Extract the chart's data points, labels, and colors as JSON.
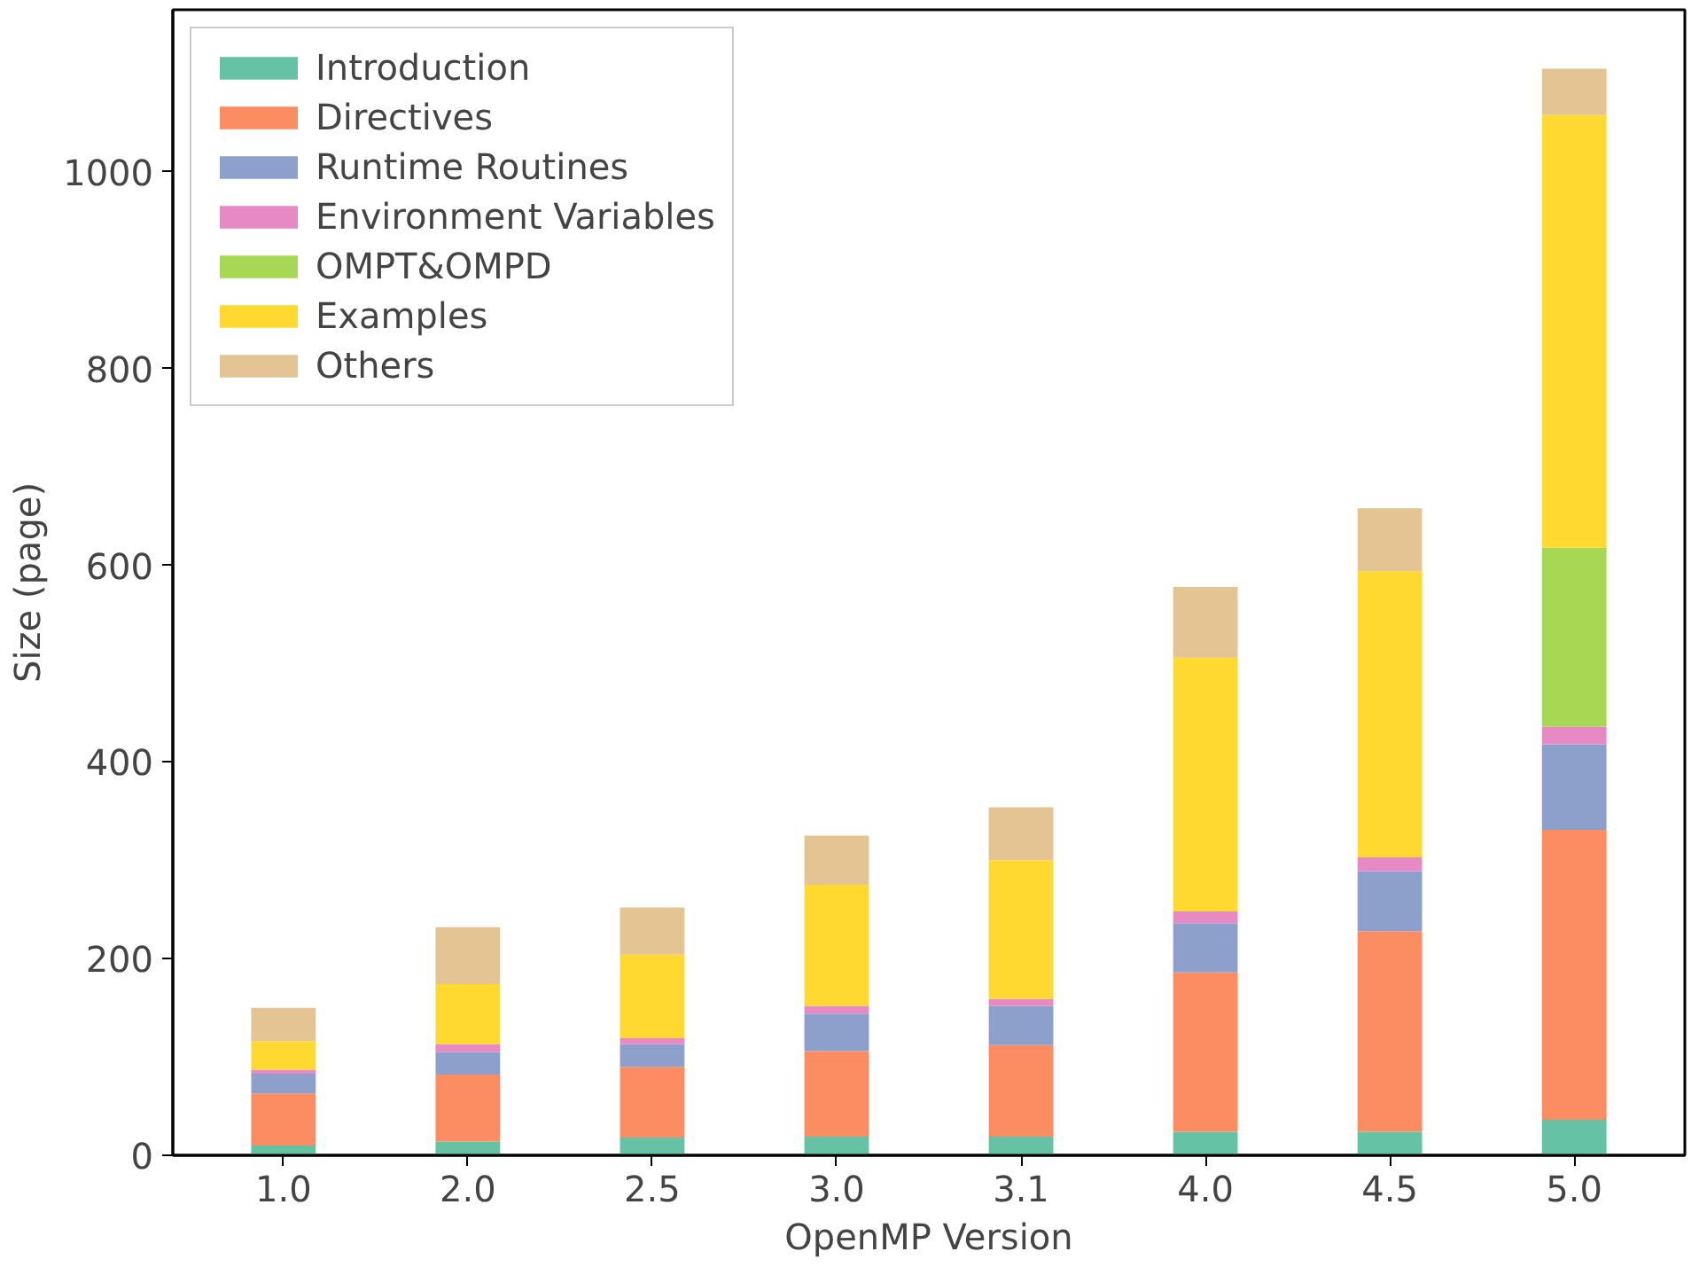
{
  "chart_data": {
    "type": "bar",
    "stacked": true,
    "xlabel": "OpenMP Version",
    "ylabel": "Size (page)",
    "categories": [
      "1.0",
      "2.0",
      "2.5",
      "3.0",
      "3.1",
      "4.0",
      "4.5",
      "5.0"
    ],
    "series": [
      {
        "name": "Introduction",
        "color": "#66c2a5",
        "values": [
          10,
          14,
          18,
          19,
          19,
          24,
          24,
          36
        ]
      },
      {
        "name": "Directives",
        "color": "#fc8d62",
        "values": [
          53,
          68,
          72,
          87,
          93,
          162,
          204,
          295
        ]
      },
      {
        "name": "Runtime Routines",
        "color": "#8da0cb",
        "values": [
          20,
          23,
          23,
          38,
          40,
          50,
          61,
          87
        ]
      },
      {
        "name": "Environment Variables",
        "color": "#e78ac3",
        "values": [
          4,
          8,
          6,
          8,
          7,
          12,
          14,
          18
        ]
      },
      {
        "name": "OMPT&OMPD",
        "color": "#a6d854",
        "values": [
          0,
          0,
          0,
          0,
          0,
          0,
          0,
          182
        ]
      },
      {
        "name": "Examples",
        "color": "#ffd92f",
        "values": [
          29,
          61,
          85,
          123,
          141,
          258,
          291,
          440
        ]
      },
      {
        "name": "Others",
        "color": "#e5c494",
        "values": [
          34,
          58,
          48,
          50,
          54,
          72,
          64,
          47
        ]
      }
    ],
    "ylim": [
      0,
      1165
    ],
    "yticks": [
      0,
      200,
      400,
      600,
      800,
      1000
    ],
    "grid": false,
    "legend": "top left"
  }
}
